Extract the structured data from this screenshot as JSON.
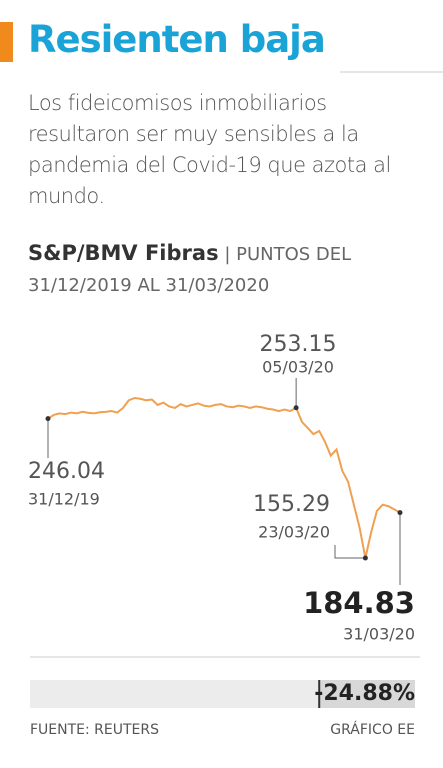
{
  "header": {
    "title": "Resienten baja",
    "description": "Los fideicomisos inmobiliarios resultaron ser muy sensibles a la pandemia del Covid-19 que azota al mundo."
  },
  "chart_data": {
    "type": "line",
    "title": "S&P/BMV Fibras",
    "subtitle": "| PUNTOS DEL 31/12/2019 AL 31/03/2020",
    "categories": [
      null,
      null,
      null,
      null,
      null,
      null,
      null,
      null,
      null,
      null,
      null,
      null,
      null,
      null,
      null,
      null,
      null,
      null,
      null,
      null,
      null,
      null,
      null,
      null,
      null,
      null,
      null,
      null,
      null,
      null,
      null,
      null,
      null,
      null,
      null,
      null,
      null,
      null,
      null,
      null,
      null,
      null,
      null,
      null,
      null,
      null,
      null,
      null,
      null,
      null,
      null,
      null,
      null,
      null,
      null,
      null,
      null,
      null,
      null,
      null,
      null,
      null
    ],
    "series": [
      {
        "name": null,
        "color": "#f0a050",
        "values": [
          246.04,
          248.5,
          249.5,
          249,
          250,
          249.5,
          250.5,
          249.8,
          249.5,
          250.2,
          250.5,
          251,
          250,
          253,
          258,
          259.5,
          259,
          258,
          258.5,
          255,
          256.5,
          254,
          253,
          255.5,
          254,
          255,
          256,
          254.5,
          254,
          255,
          255.5,
          254,
          253.5,
          254.5,
          254,
          253,
          254,
          253.5,
          252.5,
          252,
          251,
          252,
          251,
          253.15,
          244,
          240,
          236,
          238,
          231,
          222,
          226,
          212,
          205,
          190,
          175,
          155.29,
          172,
          186,
          190,
          189,
          187,
          184.83
        ]
      }
    ],
    "annotations": [
      {
        "value": 253.15,
        "date": "05/03/20"
      },
      {
        "value": 246.04,
        "date": "31/12/19"
      },
      {
        "value": 155.29,
        "date": "23/03/20"
      },
      {
        "value": 184.83,
        "date": "31/03/20"
      }
    ],
    "change": {
      "value": -24.88,
      "label": "-24.88%"
    }
  },
  "footer": {
    "source": "FUENTE: REUTERS",
    "credit": "GRÁFICO EE"
  }
}
